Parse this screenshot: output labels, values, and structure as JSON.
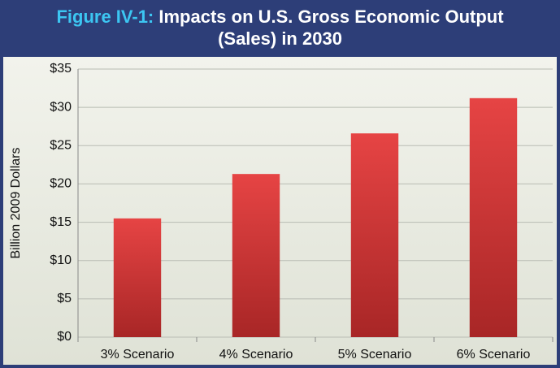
{
  "chart_data": {
    "type": "bar",
    "title_label": "Figure IV-1:",
    "title": "Impacts on U.S. Gross Economic Output (Sales) in 2030",
    "y_axis_label": "Billion 2009 Dollars",
    "categories": [
      "3% Scenario",
      "4% Scenario",
      "5% Scenario",
      "6% Scenario"
    ],
    "values": [
      15.5,
      21.3,
      26.6,
      31.2
    ],
    "color": "#d63a3a",
    "ylim": [
      0,
      35
    ],
    "yticks": [
      {
        "value": 0,
        "label": "$0"
      },
      {
        "value": 5,
        "label": "$5"
      },
      {
        "value": 10,
        "label": "$10"
      },
      {
        "value": 15,
        "label": "$15"
      },
      {
        "value": 20,
        "label": "$20"
      },
      {
        "value": 25,
        "label": "$25"
      },
      {
        "value": 30,
        "label": "$30"
      },
      {
        "value": 35,
        "label": "$35"
      }
    ],
    "grid": true
  }
}
